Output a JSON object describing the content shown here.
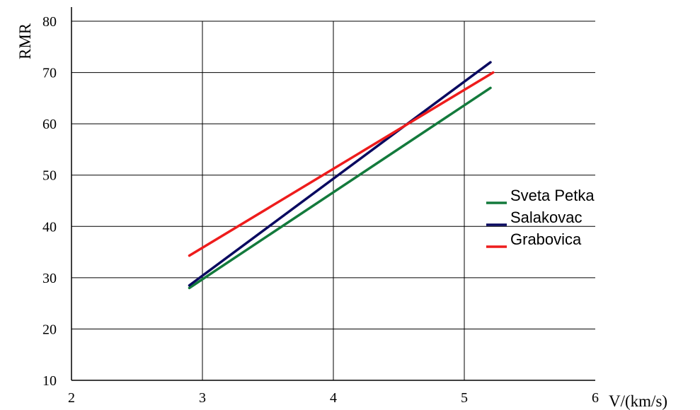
{
  "chart_data": {
    "type": "line",
    "xlabel": "V/(km/s)",
    "ylabel": "RMR",
    "xlim": [
      2,
      6
    ],
    "ylim": [
      10,
      80
    ],
    "x_ticks": [
      2,
      3,
      4,
      5,
      6
    ],
    "y_ticks": [
      10,
      20,
      30,
      40,
      50,
      60,
      70,
      80
    ],
    "grid": true,
    "legend_position": "right",
    "series": [
      {
        "name": "Sveta Petka",
        "color": "#137a3c",
        "x": [
          2.9,
          5.2
        ],
        "y": [
          28.0,
          67.0
        ]
      },
      {
        "name": "Salakovac",
        "color": "#0a0a60",
        "x": [
          2.9,
          5.2
        ],
        "y": [
          28.5,
          72.0
        ]
      },
      {
        "name": "Grabovica",
        "color": "#ee1c1c",
        "x": [
          2.9,
          5.22
        ],
        "y": [
          34.3,
          70.0
        ]
      }
    ]
  }
}
